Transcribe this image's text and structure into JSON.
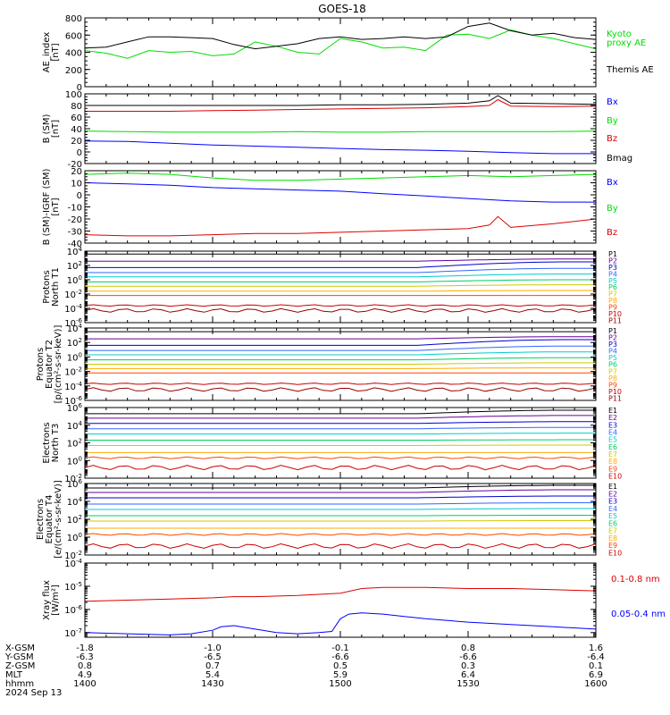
{
  "title": "GOES-18",
  "colors": {
    "black": "#000000",
    "green": "#00dd00",
    "blue": "#0000ff",
    "red": "#dd0000",
    "P": [
      "#000000",
      "#660099",
      "#0000cc",
      "#3366ff",
      "#00cccc",
      "#00cc66",
      "#cccc00",
      "#ffaa00",
      "#ff4400",
      "#cc0000",
      "#990000"
    ],
    "E": [
      "#000000",
      "#660099",
      "#0000cc",
      "#3366ff",
      "#00cccc",
      "#00cc66",
      "#cccc00",
      "#ffaa00",
      "#ff4400",
      "#cc0000"
    ]
  },
  "ephemeris": {
    "labels": [
      "X-GSM",
      "Y-GSM",
      "Z-GSM",
      "MLT",
      "hhmm",
      "2024 Sep 13"
    ],
    "columns": [
      {
        "x": "-1.8",
        "y": "-6.3",
        "z": "0.8",
        "mlt": "4.9",
        "hhmm": "1400"
      },
      {
        "x": "-1.0",
        "y": "-6.5",
        "z": "0.7",
        "mlt": "5.4",
        "hhmm": "1430"
      },
      {
        "x": "-0.1",
        "y": "-6.6",
        "z": "0.5",
        "mlt": "5.9",
        "hhmm": "1500"
      },
      {
        "x": "0.8",
        "y": "-6.6",
        "z": "0.3",
        "mlt": "6.4",
        "hhmm": "1530"
      },
      {
        "x": "1.6",
        "y": "-6.4",
        "z": "0.1",
        "mlt": "6.9",
        "hhmm": "1600"
      }
    ]
  },
  "chart_data": [
    {
      "type": "line",
      "ylabel": [
        "AE_index",
        "[nT]"
      ],
      "scale": "linear",
      "ylim": [
        0,
        800
      ],
      "yticks": [
        0,
        200,
        400,
        600,
        800
      ],
      "series": [
        {
          "name": "Kyoto proxy AE",
          "color": "#00dd00",
          "x": [
            1400,
            1405,
            1410,
            1415,
            1420,
            1425,
            1430,
            1435,
            1440,
            1445,
            1450,
            1455,
            1500,
            1505,
            1510,
            1515,
            1520,
            1525,
            1530,
            1535,
            1540,
            1545,
            1550,
            1555,
            1600
          ],
          "values": [
            420,
            390,
            330,
            420,
            400,
            410,
            360,
            380,
            520,
            470,
            400,
            380,
            560,
            520,
            450,
            460,
            420,
            600,
            610,
            560,
            660,
            600,
            560,
            500,
            440
          ]
        },
        {
          "name": "Themis AE",
          "color": "#000000",
          "x": [
            1400,
            1405,
            1410,
            1415,
            1420,
            1425,
            1430,
            1435,
            1440,
            1445,
            1450,
            1455,
            1500,
            1505,
            1510,
            1515,
            1520,
            1525,
            1530,
            1535,
            1540,
            1545,
            1550,
            1555,
            1600
          ],
          "values": [
            450,
            460,
            520,
            580,
            580,
            570,
            560,
            490,
            440,
            470,
            500,
            560,
            580,
            550,
            560,
            580,
            560,
            580,
            700,
            740,
            650,
            600,
            620,
            570,
            550
          ]
        }
      ],
      "legend": [
        {
          "text": "Kyoto",
          "color": "#00dd00"
        },
        {
          "text": "proxy AE",
          "color": "#00dd00"
        },
        {
          "text": "Themis AE",
          "color": "#000000"
        }
      ]
    },
    {
      "type": "line",
      "ylabel": [
        "B (SM)",
        "[nT]"
      ],
      "scale": "linear",
      "ylim": [
        -20,
        100
      ],
      "yticks": [
        -20,
        0,
        20,
        40,
        60,
        80,
        100
      ],
      "series": [
        {
          "name": "Bmag",
          "color": "#000000",
          "x": [
            1400,
            1410,
            1420,
            1430,
            1440,
            1450,
            1500,
            1510,
            1520,
            1530,
            1535,
            1537,
            1540,
            1550,
            1600
          ],
          "values": [
            80,
            80,
            80,
            80,
            80,
            80,
            81,
            81,
            82,
            84,
            88,
            97,
            84,
            83,
            82
          ]
        },
        {
          "name": "Bz",
          "color": "#dd0000",
          "x": [
            1400,
            1410,
            1420,
            1430,
            1440,
            1450,
            1500,
            1510,
            1520,
            1530,
            1535,
            1537,
            1540,
            1550,
            1600
          ],
          "values": [
            70,
            70,
            70,
            71,
            72,
            73,
            74,
            75,
            76,
            78,
            80,
            90,
            79,
            78,
            79
          ]
        },
        {
          "name": "By",
          "color": "#00dd00",
          "x": [
            1400,
            1410,
            1420,
            1430,
            1440,
            1450,
            1500,
            1510,
            1520,
            1530,
            1540,
            1550,
            1600
          ],
          "values": [
            36,
            35,
            34,
            34,
            34,
            35,
            34,
            34,
            35,
            35,
            35,
            35,
            36
          ]
        },
        {
          "name": "Bx",
          "color": "#0000ff",
          "x": [
            1400,
            1410,
            1420,
            1430,
            1440,
            1450,
            1500,
            1510,
            1520,
            1530,
            1540,
            1550,
            1600
          ],
          "values": [
            19,
            18,
            15,
            12,
            10,
            8,
            6,
            4,
            3,
            1,
            -1,
            -3,
            -3
          ]
        }
      ],
      "legend": [
        {
          "text": "Bx",
          "color": "#0000ff"
        },
        {
          "text": "By",
          "color": "#00dd00"
        },
        {
          "text": "Bz",
          "color": "#dd0000"
        },
        {
          "text": "Bmag",
          "color": "#000000"
        }
      ]
    },
    {
      "type": "line",
      "ylabel": [
        "B (SM)-IGRF (SM)",
        "[nT]"
      ],
      "scale": "linear",
      "ylim": [
        -40,
        20
      ],
      "yticks": [
        -40,
        -30,
        -20,
        -10,
        0,
        10,
        20
      ],
      "series": [
        {
          "name": "By",
          "color": "#00dd00",
          "x": [
            1400,
            1410,
            1420,
            1430,
            1440,
            1450,
            1500,
            1510,
            1520,
            1530,
            1540,
            1550,
            1600
          ],
          "values": [
            17,
            18,
            17,
            14,
            12,
            12,
            13,
            14,
            15,
            16,
            15,
            16,
            17
          ]
        },
        {
          "name": "Bx",
          "color": "#0000ff",
          "x": [
            1400,
            1410,
            1420,
            1430,
            1440,
            1450,
            1500,
            1510,
            1520,
            1530,
            1540,
            1550,
            1600
          ],
          "values": [
            10,
            9,
            8,
            6,
            5,
            4,
            3,
            1,
            -1,
            -3,
            -5,
            -6,
            -6
          ]
        },
        {
          "name": "Bz",
          "color": "#dd0000",
          "x": [
            1400,
            1410,
            1420,
            1430,
            1440,
            1450,
            1500,
            1510,
            1520,
            1530,
            1535,
            1537,
            1540,
            1550,
            1600
          ],
          "values": [
            -33,
            -34,
            -34,
            -33,
            -32,
            -32,
            -31,
            -30,
            -29,
            -28,
            -25,
            -18,
            -27,
            -24,
            -20
          ]
        }
      ],
      "legend": [
        {
          "text": "Bx",
          "color": "#0000ff"
        },
        {
          "text": "By",
          "color": "#00dd00"
        },
        {
          "text": "Bz",
          "color": "#dd0000"
        }
      ]
    },
    {
      "type": "line",
      "ylabel": [
        "Protons",
        "North T1"
      ],
      "scale": "log",
      "ylim": [
        -6,
        4
      ],
      "yticks": [
        -6,
        -4,
        -2,
        0,
        2,
        4
      ],
      "tick_labels": [
        "10-6",
        "10-4",
        "10-2",
        "100",
        "102",
        "104"
      ],
      "levels": [
        3.6,
        2.6,
        1.7,
        1.0,
        0.4,
        -0.3,
        -0.9,
        -1.6,
        -2.2,
        -3.6,
        -4.3
      ],
      "bump": [
        0,
        0.3,
        0.8,
        0.6,
        0.4,
        0.3,
        0.2,
        0.1,
        0,
        0,
        0
      ],
      "legend": [
        "P1",
        "P2",
        "P3",
        "P4",
        "P5",
        "P6",
        "P7",
        "P8",
        "P9",
        "P10",
        "P11"
      ]
    },
    {
      "type": "line",
      "ylabel": [
        "Protons",
        "Equator T2",
        "[p/(cm²-s-sr-keV)]"
      ],
      "scale": "log",
      "ylim": [
        -6,
        4
      ],
      "yticks": [
        -6,
        -4,
        -2,
        0,
        2,
        4
      ],
      "tick_labels": [
        "10-6",
        "10-4",
        "10-2",
        "100",
        "102",
        "104"
      ],
      "levels": [
        3.5,
        2.5,
        1.6,
        0.9,
        0.3,
        -0.4,
        -1.0,
        -1.6,
        -2.2,
        -3.7,
        -4.5
      ],
      "bump": [
        0,
        0.3,
        0.8,
        0.6,
        0.4,
        0.3,
        0.2,
        0.1,
        0,
        0,
        0
      ],
      "legend": [
        "P1",
        "P2",
        "P3",
        "P4",
        "P5",
        "P6",
        "P7",
        "P8",
        "P9",
        "P10",
        "P11"
      ]
    },
    {
      "type": "line",
      "ylabel": [
        "Electrons",
        "North T3"
      ],
      "scale": "log",
      "ylim": [
        -2,
        6
      ],
      "yticks": [
        -2,
        0,
        2,
        4,
        6
      ],
      "tick_labels": [
        "10-2",
        "100",
        "102",
        "104",
        "106"
      ],
      "levels": [
        5.3,
        4.8,
        4.2,
        3.6,
        3.0,
        2.3,
        1.7,
        0.9,
        0.3,
        -0.8
      ],
      "bump": [
        0.4,
        0.3,
        0.2,
        0.15,
        0.1,
        0.05,
        0.05,
        0,
        0,
        0
      ],
      "legend": [
        "E1",
        "E2",
        "E3",
        "E4",
        "E5",
        "E6",
        "E7",
        "E8",
        "E9",
        "E10"
      ]
    },
    {
      "type": "line",
      "ylabel": [
        "Electrons",
        "Equator T4",
        "[e/(cm²-s-sr-keV)]"
      ],
      "scale": "log",
      "ylim": [
        -2,
        6
      ],
      "yticks": [
        -2,
        0,
        2,
        4,
        6
      ],
      "tick_labels": [
        "10-2",
        "100",
        "102",
        "104",
        "106"
      ],
      "levels": [
        5.5,
        5.0,
        4.4,
        3.7,
        3.1,
        2.4,
        1.8,
        1.0,
        0.3,
        -1.0
      ],
      "bump": [
        0.3,
        0.3,
        0.2,
        0.15,
        0.1,
        0.05,
        0.05,
        0,
        0,
        0
      ],
      "legend": [
        "E1",
        "E2",
        "E3",
        "E4",
        "E5",
        "E6",
        "E7",
        "E8",
        "E9",
        "E10"
      ]
    },
    {
      "type": "line",
      "ylabel": [
        "Xray flux",
        "[W/m²]"
      ],
      "scale": "log",
      "ylim": [
        -7.2,
        -4
      ],
      "yticks": [
        -7,
        -6,
        -5,
        -4
      ],
      "tick_labels": [
        "10-7",
        "10-6",
        "10-5",
        "10-4"
      ],
      "series": [
        {
          "name": "0.1-0.8 nm",
          "color": "#dd0000",
          "x": [
            1400,
            1410,
            1420,
            1430,
            1435,
            1440,
            1450,
            1500,
            1505,
            1510,
            1520,
            1530,
            1540,
            1550,
            1600
          ],
          "values": [
            -5.65,
            -5.6,
            -5.55,
            -5.5,
            -5.45,
            -5.45,
            -5.4,
            -5.3,
            -5.1,
            -5.05,
            -5.05,
            -5.1,
            -5.1,
            -5.15,
            -5.2
          ]
        },
        {
          "name": "0.05-0.4 nm",
          "color": "#0000ff",
          "x": [
            1400,
            1410,
            1420,
            1425,
            1430,
            1432,
            1435,
            1440,
            1445,
            1450,
            1455,
            1458,
            1500,
            1502,
            1505,
            1510,
            1515,
            1520,
            1530,
            1540,
            1550,
            1600
          ],
          "values": [
            -7.0,
            -7.05,
            -7.1,
            -7.05,
            -6.9,
            -6.75,
            -6.7,
            -6.85,
            -7.0,
            -7.05,
            -7.0,
            -6.95,
            -6.4,
            -6.2,
            -6.15,
            -6.2,
            -6.3,
            -6.4,
            -6.55,
            -6.65,
            -6.75,
            -6.85
          ]
        }
      ],
      "legend": [
        {
          "text": "0.1-0.8 nm",
          "color": "#dd0000"
        },
        {
          "text": "0.05-0.4 nm",
          "color": "#0000ff"
        }
      ]
    }
  ]
}
